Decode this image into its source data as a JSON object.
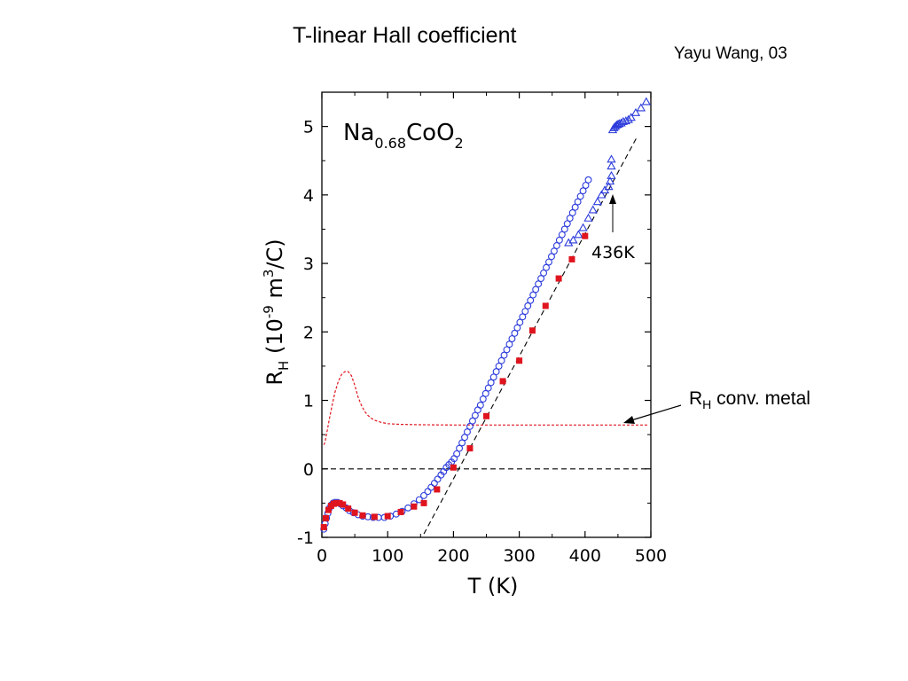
{
  "slide": {
    "title": "T-linear Hall coefficient",
    "author": "Yayu Wang, 03",
    "callout_main": "R",
    "callout_sub": "H",
    "callout_rest": " conv. metal"
  },
  "chart_data": {
    "type": "scatter",
    "title_parts": {
      "base1": "Na",
      "sub1": "0.68",
      "base2": "CoO",
      "sub2": "2"
    },
    "xlabel": "T (K)",
    "ylabel_parts": {
      "r": "R",
      "h": "H",
      "open": " (10",
      "exp9": "-9",
      "m": " m",
      "exp3": "3",
      "close": "/C)"
    },
    "xlim": [
      0,
      500
    ],
    "ylim": [
      -1,
      5.5
    ],
    "xticks": [
      0,
      100,
      200,
      300,
      400,
      500
    ],
    "yticks": [
      -1,
      0,
      1,
      2,
      3,
      4,
      5
    ],
    "xtick_labels": [
      "0",
      "100",
      "200",
      "300",
      "400",
      "500"
    ],
    "ytick_labels": [
      "-1",
      "0",
      "1",
      "2",
      "3",
      "4",
      "5"
    ],
    "annotation": {
      "text": "436K",
      "x": 436,
      "y": 4.1
    },
    "colors": {
      "open_circles": "#2b3bdb",
      "triangles": "#2b3bdb",
      "filled_squares": "#e0141e",
      "conv_metal": "#e0141e",
      "guide": "#000000"
    },
    "series": [
      {
        "marker": "open-circle",
        "x": [
          3,
          5,
          7,
          9,
          11,
          14,
          17,
          20,
          24,
          28,
          32,
          37,
          42,
          48,
          55,
          62,
          70,
          78,
          86,
          95,
          104,
          113,
          122,
          131,
          140,
          148,
          155,
          161,
          166,
          171,
          176,
          181,
          185,
          189,
          193,
          197,
          201,
          205,
          209,
          213,
          217,
          221,
          225,
          229,
          233,
          237,
          241,
          245,
          249,
          253,
          257,
          261,
          265,
          269,
          273,
          277,
          281,
          285,
          289,
          293,
          297,
          301,
          305,
          309,
          313,
          317,
          321,
          325,
          329,
          333,
          337,
          341,
          345,
          349,
          353,
          357,
          361,
          365,
          369,
          373,
          377,
          381,
          385,
          389,
          393,
          397,
          401,
          405
        ],
        "y": [
          -0.88,
          -0.8,
          -0.72,
          -0.65,
          -0.58,
          -0.53,
          -0.5,
          -0.49,
          -0.49,
          -0.51,
          -0.54,
          -0.57,
          -0.61,
          -0.64,
          -0.67,
          -0.69,
          -0.7,
          -0.71,
          -0.71,
          -0.71,
          -0.69,
          -0.66,
          -0.62,
          -0.57,
          -0.51,
          -0.45,
          -0.39,
          -0.33,
          -0.27,
          -0.21,
          -0.15,
          -0.09,
          -0.04,
          0.02,
          0.06,
          0.1,
          0.15,
          0.22,
          0.3,
          0.38,
          0.46,
          0.54,
          0.62,
          0.7,
          0.78,
          0.86,
          0.93,
          1.02,
          1.1,
          1.18,
          1.26,
          1.34,
          1.42,
          1.5,
          1.58,
          1.66,
          1.74,
          1.82,
          1.9,
          1.98,
          2.06,
          2.14,
          2.22,
          2.3,
          2.38,
          2.46,
          2.54,
          2.62,
          2.7,
          2.78,
          2.86,
          2.94,
          3.02,
          3.1,
          3.18,
          3.26,
          3.34,
          3.42,
          3.5,
          3.58,
          3.66,
          3.74,
          3.82,
          3.9,
          3.98,
          4.06,
          4.14,
          4.22
        ]
      },
      {
        "marker": "filled-square",
        "x": [
          3,
          6,
          10,
          14,
          18,
          22,
          27,
          32,
          40,
          50,
          62,
          80,
          100,
          120,
          140,
          155,
          175,
          200,
          225,
          250,
          275,
          300,
          320,
          340,
          360,
          380,
          400
        ],
        "y": [
          -0.85,
          -0.72,
          -0.6,
          -0.54,
          -0.51,
          -0.5,
          -0.5,
          -0.52,
          -0.58,
          -0.64,
          -0.68,
          -0.7,
          -0.69,
          -0.63,
          -0.55,
          -0.5,
          -0.3,
          0.02,
          0.3,
          0.77,
          1.28,
          1.58,
          2.02,
          2.38,
          2.78,
          3.06,
          3.4
        ]
      },
      {
        "marker": "open-triangle",
        "x": [
          375,
          382,
          390,
          397,
          405,
          412,
          419,
          425,
          430,
          436,
          438,
          440,
          440,
          440,
          442,
          444,
          446,
          448,
          450,
          452,
          455,
          458,
          462,
          466,
          470,
          477,
          485,
          493
        ],
        "y": [
          3.3,
          3.34,
          3.42,
          3.52,
          3.66,
          3.78,
          3.9,
          4.0,
          4.07,
          4.12,
          4.2,
          4.28,
          4.42,
          4.52,
          4.95,
          4.98,
          5.0,
          5.02,
          5.03,
          5.04,
          5.05,
          5.07,
          5.08,
          5.1,
          5.13,
          5.2,
          5.27,
          5.36
        ]
      },
      {
        "marker": "dashed-line",
        "x": [
          155,
          478
        ],
        "y": [
          -0.95,
          4.83
        ]
      },
      {
        "marker": "dashed-line",
        "x": [
          0,
          500
        ],
        "y": [
          0,
          0
        ]
      },
      {
        "marker": "dotted-curve",
        "x": [
          3,
          5,
          8,
          12,
          16,
          20,
          25,
          30,
          35,
          40,
          45,
          50,
          55,
          60,
          65,
          70,
          75,
          80,
          90,
          100,
          120,
          150,
          200,
          250,
          300,
          350,
          400,
          450,
          495
        ],
        "y": [
          0.35,
          0.4,
          0.55,
          0.76,
          0.95,
          1.12,
          1.28,
          1.38,
          1.42,
          1.42,
          1.36,
          1.22,
          1.05,
          0.93,
          0.84,
          0.78,
          0.74,
          0.71,
          0.68,
          0.66,
          0.65,
          0.645,
          0.64,
          0.64,
          0.64,
          0.64,
          0.64,
          0.64,
          0.64
        ]
      }
    ]
  }
}
